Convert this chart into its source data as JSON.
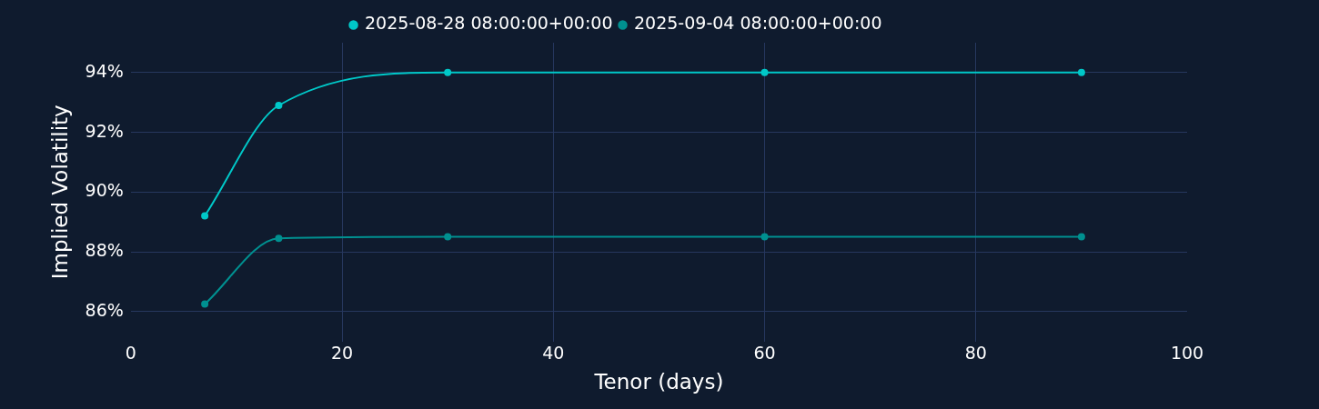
{
  "chart_data": {
    "type": "line",
    "xlabel": "Tenor (days)",
    "ylabel": "Implied Volatility",
    "x": [
      7,
      14,
      30,
      60,
      90
    ],
    "series": [
      {
        "name": "2025-08-28 08:00:00+00:00",
        "color": "#00c8c8",
        "values": [
          89.2,
          92.9,
          94.0,
          94.0,
          94.0
        ]
      },
      {
        "name": "2025-09-04 08:00:00+00:00",
        "color": "#009090",
        "values": [
          86.25,
          88.45,
          88.5,
          88.5,
          88.5
        ]
      }
    ],
    "xlim": [
      0,
      100
    ],
    "xticks": [
      0,
      20,
      40,
      60,
      80,
      100
    ],
    "ylim": [
      85,
      95
    ],
    "yticks": [
      {
        "value": 86,
        "label": "86%"
      },
      {
        "value": 88,
        "label": "88%"
      },
      {
        "value": 90,
        "label": "90%"
      },
      {
        "value": 92,
        "label": "92%"
      },
      {
        "value": 94,
        "label": "94%"
      }
    ],
    "grid": true,
    "legend": "top",
    "marker": "circle",
    "line_style": "solid"
  }
}
